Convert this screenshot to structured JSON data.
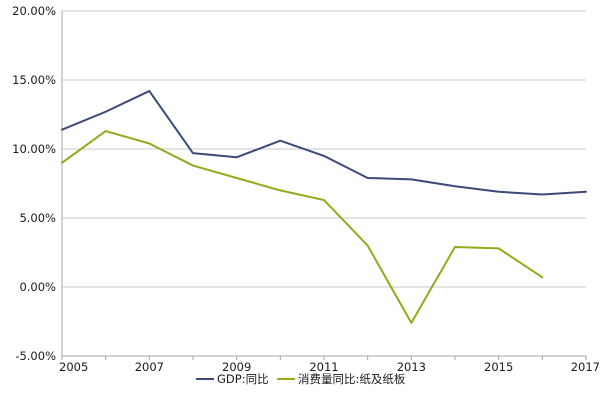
{
  "chart_data": {
    "type": "line",
    "title": "",
    "xlabel": "",
    "ylabel": "",
    "x": [
      2005,
      2006,
      2007,
      2008,
      2009,
      2010,
      2011,
      2012,
      2013,
      2014,
      2015,
      2016,
      2017
    ],
    "xlim": [
      2005,
      2017
    ],
    "ylim": [
      -5,
      20
    ],
    "x_ticks": [
      2005,
      2007,
      2009,
      2011,
      2013,
      2015,
      2017
    ],
    "x_tick_labels": [
      "2005",
      "2007",
      "2009",
      "2011",
      "2013",
      "2015",
      "2017"
    ],
    "y_ticks": [
      -5,
      0,
      5,
      10,
      15,
      20
    ],
    "y_tick_labels": [
      "-5.00%",
      "0.00%",
      "5.00%",
      "10.00%",
      "15.00%",
      "20.00%"
    ],
    "grid": "horizontal",
    "legend_position": "bottom",
    "series": [
      {
        "name": "GDP:同比",
        "color": "#3b4a7a",
        "values": [
          11.4,
          12.7,
          14.2,
          9.7,
          9.4,
          10.6,
          9.5,
          7.9,
          7.8,
          7.3,
          6.9,
          6.7,
          6.9
        ]
      },
      {
        "name": "消费量同比:纸及纸板",
        "color": "#8fac1a",
        "values": [
          9.0,
          11.3,
          10.4,
          8.8,
          7.9,
          7.0,
          6.3,
          3.0,
          -2.6,
          2.9,
          2.8,
          0.7,
          null
        ]
      }
    ]
  }
}
